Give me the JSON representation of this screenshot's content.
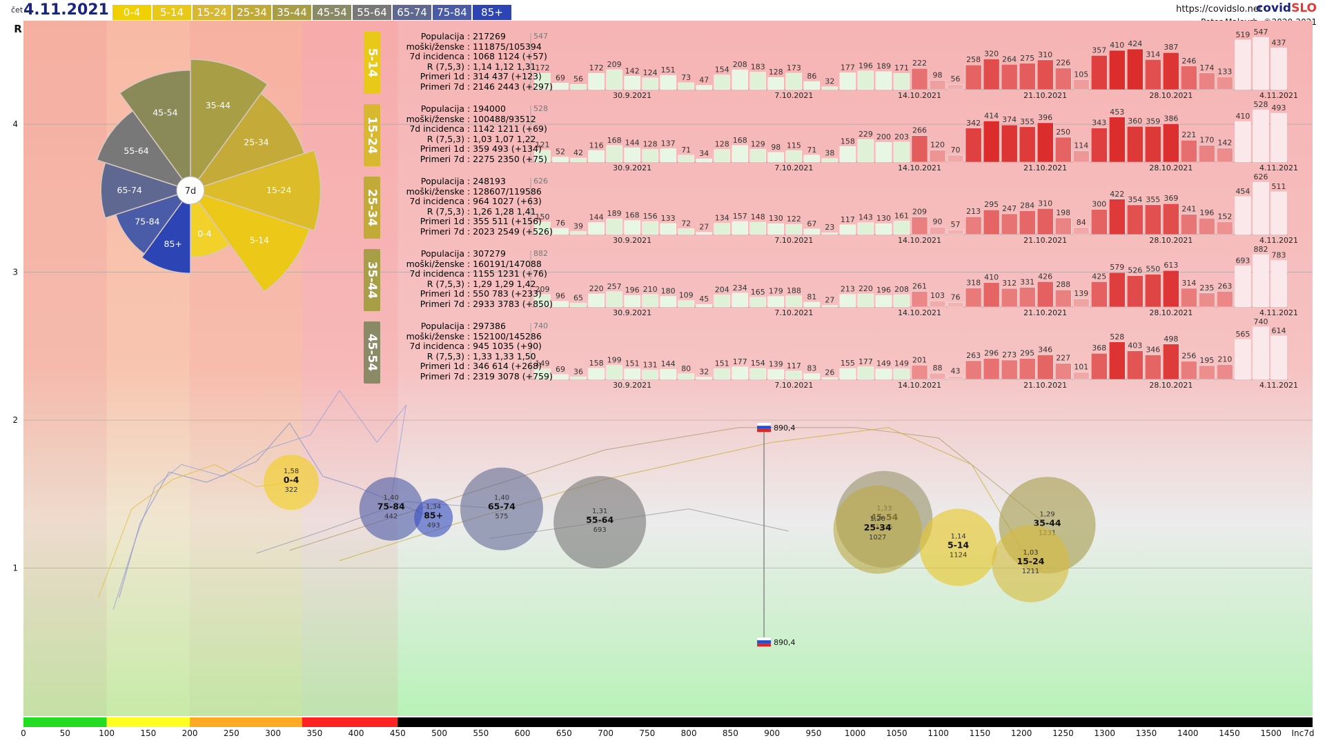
{
  "header": {
    "day": "čet",
    "date": "4.11.2021",
    "site": "https://covidslo.net",
    "brand_a": "covid",
    "brand_b": "SLO",
    "author": "Peter Malovrh, ©2020-2021",
    "age_buttons": [
      {
        "label": "0-4",
        "color": "#f0d000"
      },
      {
        "label": "5-14",
        "color": "#e8c818"
      },
      {
        "label": "15-24",
        "color": "#d8b830"
      },
      {
        "label": "25-34",
        "color": "#c2aa38"
      },
      {
        "label": "35-44",
        "color": "#a89e45"
      },
      {
        "label": "45-54",
        "color": "#8a8a66"
      },
      {
        "label": "55-64",
        "color": "#787878"
      },
      {
        "label": "65-74",
        "color": "#5e6890"
      },
      {
        "label": "75-84",
        "color": "#4a5ca8"
      },
      {
        "label": "85+",
        "color": "#2c44b4"
      }
    ]
  },
  "chart_data": {
    "type": "scatter",
    "ylabel": "R",
    "xlabel": "Inc7d",
    "xlim": [
      0,
      1550
    ],
    "ylim": [
      0,
      4.7
    ],
    "yticks": [
      1,
      2,
      3,
      4
    ],
    "xticks": [
      0,
      50,
      100,
      150,
      200,
      250,
      300,
      350,
      400,
      450,
      500,
      550,
      600,
      650,
      700,
      750,
      800,
      850,
      900,
      950,
      1000,
      1050,
      1100,
      1150,
      1200,
      1250,
      1300,
      1350,
      1400,
      1450,
      1500
    ],
    "zones": [
      {
        "from": 0,
        "to": 100,
        "color": "#22dd22"
      },
      {
        "from": 100,
        "to": 200,
        "color": "#ffff22"
      },
      {
        "from": 200,
        "to": 335,
        "color": "#ffaa22"
      },
      {
        "from": 335,
        "to": 450,
        "color": "#ff2222"
      },
      {
        "from": 450,
        "to": 1550,
        "color": "#000000"
      }
    ],
    "slovenia": {
      "x": 890.4,
      "label": "890,4",
      "r_top": 1.95,
      "r_bottom": 0.5
    },
    "bubbles": [
      {
        "group": "0-4",
        "r": "1,58",
        "inc": "322",
        "x": 322,
        "y": 1.58,
        "radius": 40,
        "color": "#f2ce1e"
      },
      {
        "group": "75-84",
        "r": "1,40",
        "inc": "442",
        "x": 442,
        "y": 1.4,
        "radius": 46,
        "color": "#5060a8"
      },
      {
        "group": "85+",
        "r": "1,34",
        "inc": "493",
        "x": 493,
        "y": 1.34,
        "radius": 28,
        "color": "#3a50c0"
      },
      {
        "group": "65-74",
        "r": "1,40",
        "inc": "575",
        "x": 575,
        "y": 1.4,
        "radius": 60,
        "color": "#687098"
      },
      {
        "group": "55-64",
        "r": "1,31",
        "inc": "693",
        "x": 693,
        "y": 1.31,
        "radius": 67,
        "color": "#7a7a7a"
      },
      {
        "group": "45-54",
        "r": "1,33",
        "inc": "1035",
        "x": 1035,
        "y": 1.33,
        "radius": 70,
        "color": "#9a9670"
      },
      {
        "group": "25-34",
        "r": "1,26",
        "inc": "1027",
        "x": 1027,
        "y": 1.26,
        "radius": 64,
        "color": "#bcaa48"
      },
      {
        "group": "5-14",
        "r": "1,14",
        "inc": "1124",
        "x": 1124,
        "y": 1.14,
        "radius": 56,
        "color": "#e6c628"
      },
      {
        "group": "35-44",
        "r": "1,29",
        "inc": "1231",
        "x": 1231,
        "y": 1.29,
        "radius": 70,
        "color": "#a89e50"
      },
      {
        "group": "15-24",
        "r": "1,03",
        "inc": "1211",
        "x": 1211,
        "y": 1.03,
        "radius": 56,
        "color": "#d6bc40"
      }
    ],
    "polar": {
      "center_label": "7d",
      "slices": [
        {
          "label": "0-4",
          "value": 322,
          "color": "#f2d22a"
        },
        {
          "label": "5-14",
          "value": 1124,
          "color": "#ecc818"
        },
        {
          "label": "15-24",
          "value": 1211,
          "color": "#dcbc28"
        },
        {
          "label": "25-34",
          "value": 1027,
          "color": "#c4aa38"
        },
        {
          "label": "35-44",
          "value": 1231,
          "color": "#a89e45"
        },
        {
          "label": "45-54",
          "value": 1035,
          "color": "#8a8a58"
        },
        {
          "label": "55-64",
          "value": 693,
          "color": "#787878"
        },
        {
          "label": "65-74",
          "value": 575,
          "color": "#5e6890"
        },
        {
          "label": "75-84",
          "value": 442,
          "color": "#4a5ca8"
        },
        {
          "label": "85+",
          "value": 493,
          "color": "#2c44b4"
        }
      ]
    },
    "date_labels": [
      "30.9.2021",
      "7.10.2021",
      "14.10.2021",
      "21.10.2021",
      "28.10.2021",
      "4.11.2021"
    ],
    "panels": [
      {
        "group": "5-14",
        "color": "#e8c818",
        "ymax": "547",
        "populacija": "217269",
        "moski_zenske": "111875/105394",
        "incidenca": "1068 1124 (+57)",
        "r": "1,14 1,12 1,31",
        "primeri_1d": "314 437 (+123)",
        "primeri_7d": "2146 2443 (+297)",
        "values": [
          172,
          69,
          56,
          172,
          209,
          142,
          124,
          151,
          73,
          47,
          154,
          208,
          183,
          128,
          173,
          86,
          32,
          177,
          196,
          189,
          171,
          222,
          98,
          56,
          258,
          320,
          264,
          275,
          310,
          226,
          105,
          357,
          410,
          424,
          314,
          387,
          246,
          174,
          133,
          519,
          547,
          437
        ]
      },
      {
        "group": "15-24",
        "color": "#d8b830",
        "ymax": "528",
        "populacija": "194000",
        "moski_zenske": "100488/93512",
        "incidenca": "1142 1211 (+69)",
        "r": "1,03 1,07 1,22",
        "primeri_1d": "359 493 (+134)",
        "primeri_7d": "2275 2350 (+75)",
        "values": [
          121,
          52,
          42,
          116,
          168,
          144,
          128,
          137,
          71,
          34,
          128,
          168,
          129,
          98,
          115,
          71,
          38,
          158,
          229,
          200,
          203,
          266,
          120,
          70,
          342,
          414,
          374,
          355,
          396,
          250,
          114,
          343,
          453,
          360,
          359,
          386,
          221,
          170,
          142,
          410,
          528,
          493
        ]
      },
      {
        "group": "25-34",
        "color": "#c2aa38",
        "ymax": "626",
        "populacija": "248193",
        "moski_zenske": "128607/119586",
        "incidenca": "964 1027 (+63)",
        "r": "1,26 1,28 1,41",
        "primeri_1d": "355 511 (+156)",
        "primeri_7d": "2023 2549 (+526)",
        "values": [
          150,
          76,
          39,
          144,
          189,
          168,
          156,
          133,
          72,
          27,
          134,
          157,
          148,
          130,
          122,
          67,
          23,
          117,
          143,
          130,
          161,
          209,
          90,
          57,
          213,
          295,
          247,
          284,
          310,
          198,
          84,
          300,
          422,
          354,
          355,
          369,
          241,
          196,
          152,
          454,
          626,
          511
        ]
      },
      {
        "group": "35-44",
        "color": "#a89e45",
        "ymax": "882",
        "populacija": "307279",
        "moski_zenske": "160191/147088",
        "incidenca": "1155 1231 (+76)",
        "r": "1,29 1,29 1,42",
        "primeri_1d": "550 783 (+233)",
        "primeri_7d": "2933 3783 (+850)",
        "values": [
          209,
          96,
          65,
          220,
          257,
          196,
          210,
          180,
          109,
          45,
          204,
          234,
          165,
          179,
          188,
          81,
          27,
          213,
          220,
          196,
          208,
          261,
          103,
          76,
          318,
          410,
          312,
          331,
          426,
          288,
          139,
          425,
          579,
          526,
          550,
          613,
          314,
          235,
          263,
          693,
          882,
          783
        ]
      },
      {
        "group": "45-54",
        "color": "#8a8a66",
        "ymax": "740",
        "populacija": "297386",
        "moski_zenske": "152100/145286",
        "incidenca": "945 1035 (+90)",
        "r": "1,33 1,33 1,50",
        "primeri_1d": "346 614 (+268)",
        "primeri_7d": "2319 3078 (+759)",
        "values": [
          149,
          69,
          36,
          158,
          199,
          151,
          131,
          144,
          80,
          32,
          151,
          177,
          154,
          139,
          117,
          83,
          26,
          155,
          177,
          149,
          149,
          201,
          88,
          43,
          263,
          296,
          273,
          295,
          346,
          227,
          101,
          368,
          528,
          403,
          346,
          498,
          256,
          195,
          210,
          565,
          740,
          614
        ]
      }
    ]
  },
  "info_labels": {
    "populacija": "Populacija",
    "moski_zenske": "moški/ženske",
    "incidenca": "7d incidenca",
    "r": "R (7,5,3)",
    "primeri_1d": "Primeri 1d",
    "primeri_7d": "Primeri 7d"
  }
}
